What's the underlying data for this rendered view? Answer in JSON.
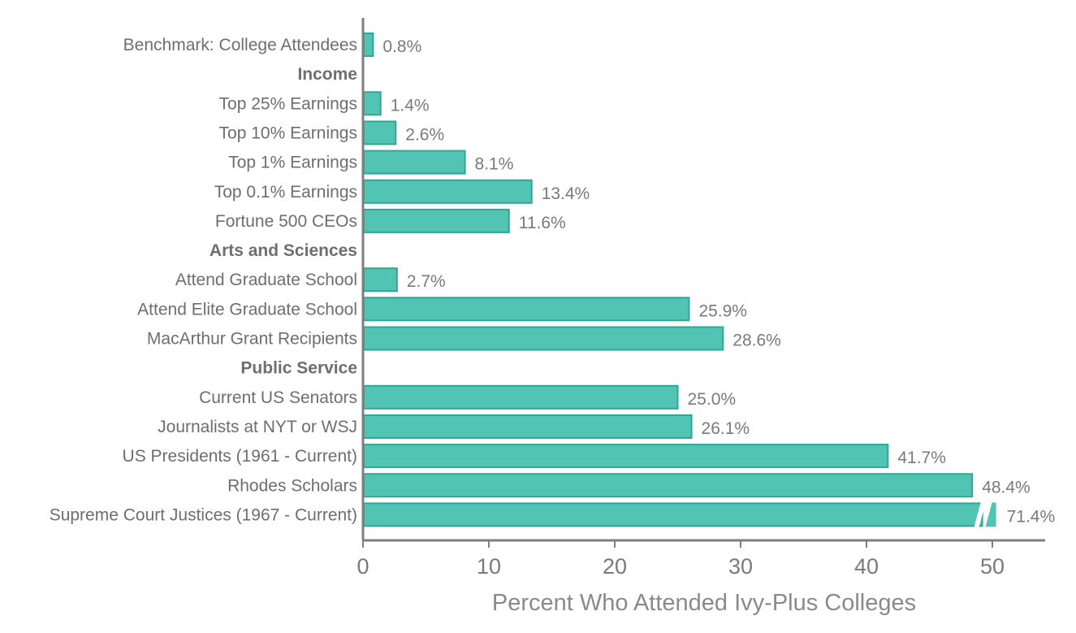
{
  "chart_data": {
    "type": "bar",
    "orientation": "horizontal",
    "xlabel": "Percent Who Attended Ivy-Plus Colleges",
    "xlim": [
      0,
      54
    ],
    "xticks": [
      0,
      10,
      20,
      30,
      40,
      50
    ],
    "grid": false,
    "colors": {
      "bar_fill": "#52c4b4",
      "bar_stroke": "#2ea796",
      "axis": "#7f7f7f"
    },
    "rows": [
      {
        "label": "Benchmark: College Attendees",
        "value": 0.8,
        "value_label": "0.8%"
      },
      {
        "label": "Income",
        "header": true
      },
      {
        "label": "Top 25% Earnings",
        "value": 1.4,
        "value_label": "1.4%"
      },
      {
        "label": "Top 10% Earnings",
        "value": 2.6,
        "value_label": "2.6%"
      },
      {
        "label": "Top 1% Earnings",
        "value": 8.1,
        "value_label": "8.1%"
      },
      {
        "label": "Top 0.1% Earnings",
        "value": 13.4,
        "value_label": "13.4%"
      },
      {
        "label": "Fortune 500 CEOs",
        "value": 11.6,
        "value_label": "11.6%"
      },
      {
        "label": "Arts and Sciences",
        "header": true
      },
      {
        "label": "Attend Graduate School",
        "value": 2.7,
        "value_label": "2.7%"
      },
      {
        "label": "Attend Elite Graduate School",
        "value": 25.9,
        "value_label": "25.9%"
      },
      {
        "label": "MacArthur Grant Recipients",
        "value": 28.6,
        "value_label": "28.6%"
      },
      {
        "label": "Public Service",
        "header": true
      },
      {
        "label": "Current US Senators",
        "value": 25.0,
        "value_label": "25.0%"
      },
      {
        "label": "Journalists at NYT or WSJ",
        "value": 26.1,
        "value_label": "26.1%"
      },
      {
        "label": "US Presidents (1961 - Current)",
        "value": 41.7,
        "value_label": "41.7%"
      },
      {
        "label": "Rhodes Scholars",
        "value": 48.4,
        "value_label": "48.4%"
      },
      {
        "label": "Supreme Court Justices (1967 - Current)",
        "value": 71.4,
        "value_label": "71.4%",
        "axis_break": true
      }
    ]
  }
}
